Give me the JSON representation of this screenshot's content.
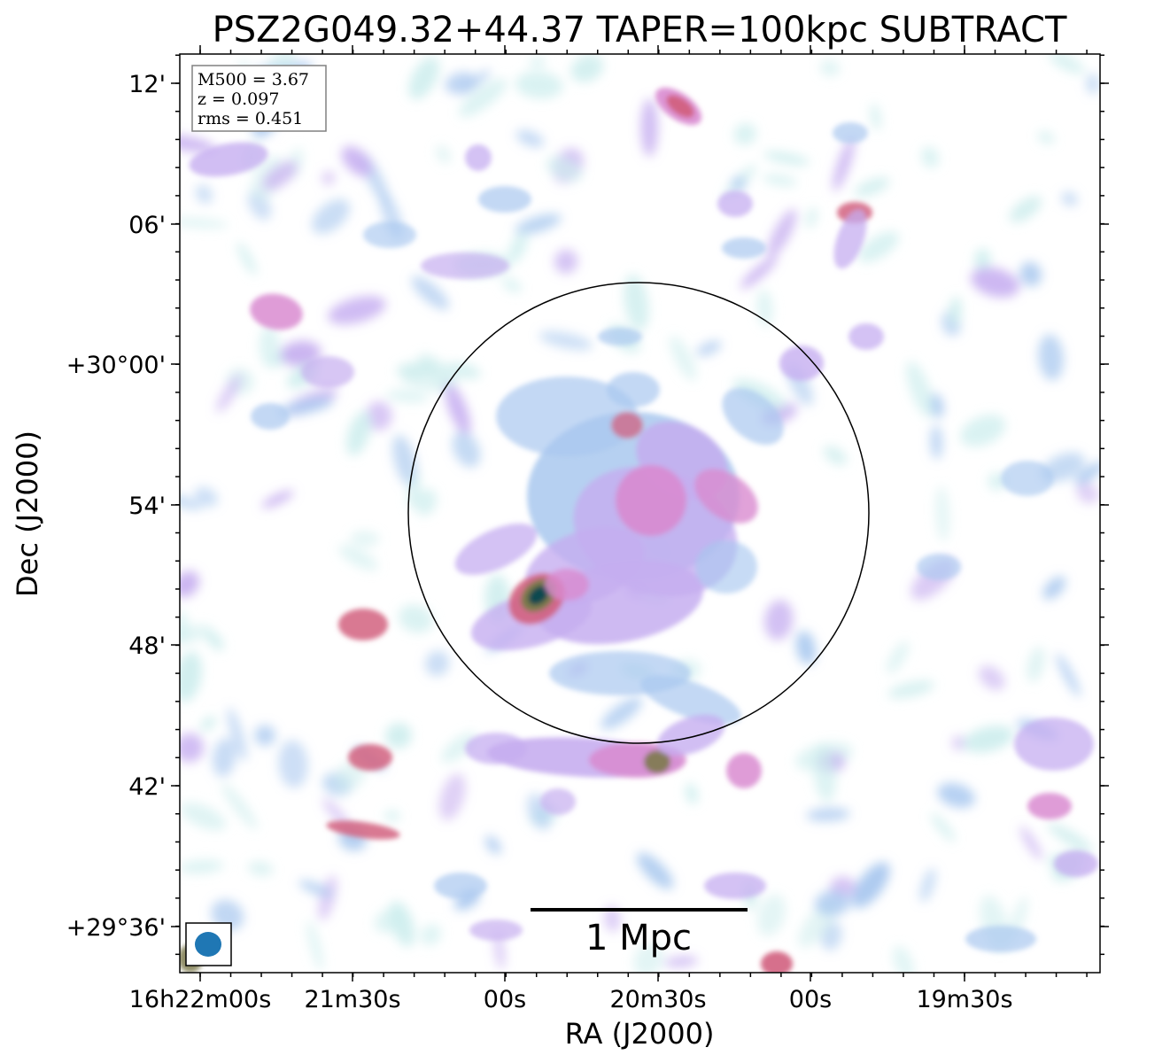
{
  "chart_data": {
    "type": "heatmap",
    "title": "PSZ2G049.32+44.37 TAPER=100kpc SUBTRACT",
    "xlabel": "RA (J2000)",
    "ylabel": "Dec (J2000)",
    "x_ticks": [
      "16h22m00s",
      "21m30s",
      "00s",
      "20m30s",
      "00s",
      "19m30s"
    ],
    "y_ticks": [
      "12'",
      "06'",
      "+30°00'",
      "54'",
      "48'",
      "42'",
      "+29°36'"
    ],
    "info_box": [
      "M500 = 3.67",
      "z = 0.097",
      "rms = 0.451"
    ],
    "scale_bar_label": "1 Mpc",
    "colormap": [
      "#ffffff",
      "#cfeeee",
      "#a9c8ef",
      "#c6aef0",
      "#d98bd0",
      "#d2607f",
      "#7d7a4c",
      "#2a7a44",
      "#0d4a4f"
    ],
    "features": [
      {
        "label": "circle",
        "color": "#000000"
      },
      {
        "label": "beam",
        "color": "#1f77b4"
      }
    ]
  }
}
